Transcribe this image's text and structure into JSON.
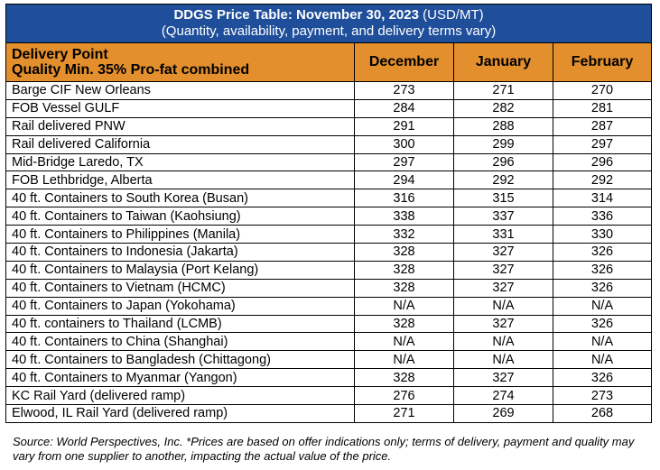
{
  "title": {
    "main": "DDGS Price Table: November 30, 2023",
    "unit": " (USD/MT)",
    "subtitle": "(Quantity, availability, payment, and delivery terms vary)"
  },
  "header": {
    "delivery_point": "Delivery Point",
    "quality": "Quality Min. 35% Pro-fat combined",
    "months": [
      "December",
      "January",
      "February"
    ]
  },
  "rows": [
    {
      "location": "Barge CIF New Orleans",
      "values": [
        "273",
        "271",
        "270"
      ]
    },
    {
      "location": "FOB Vessel GULF",
      "values": [
        "284",
        "282",
        "281"
      ]
    },
    {
      "location": "Rail delivered PNW",
      "values": [
        "291",
        "288",
        "287"
      ]
    },
    {
      "location": "Rail delivered California",
      "values": [
        "300",
        "299",
        "297"
      ]
    },
    {
      "location": "Mid-Bridge Laredo, TX",
      "values": [
        "297",
        "296",
        "296"
      ]
    },
    {
      "location": "FOB Lethbridge, Alberta",
      "values": [
        "294",
        "292",
        "292"
      ]
    },
    {
      "location": "40 ft. Containers to South Korea (Busan)",
      "values": [
        "316",
        "315",
        "314"
      ]
    },
    {
      "location": "40 ft. Containers to Taiwan (Kaohsiung)",
      "values": [
        "338",
        "337",
        "336"
      ]
    },
    {
      "location": "40 ft. Containers to Philippines (Manila)",
      "values": [
        "332",
        "331",
        "330"
      ]
    },
    {
      "location": "40 ft. Containers to Indonesia (Jakarta)",
      "values": [
        "328",
        "327",
        "326"
      ]
    },
    {
      "location": "40 ft. Containers to Malaysia (Port Kelang)",
      "values": [
        "328",
        "327",
        "326"
      ]
    },
    {
      "location": "40 ft. Containers to Vietnam (HCMC)",
      "values": [
        "328",
        "327",
        "326"
      ]
    },
    {
      "location": "40 ft. Containers to Japan (Yokohama)",
      "values": [
        "N/A",
        "N/A",
        "N/A"
      ]
    },
    {
      "location": "40 ft. containers to Thailand (LCMB)",
      "values": [
        "328",
        "327",
        "326"
      ]
    },
    {
      "location": "40 ft. Containers to China (Shanghai)",
      "values": [
        "N/A",
        "N/A",
        "N/A"
      ]
    },
    {
      "location": "40 ft. Containers to Bangladesh (Chittagong)",
      "values": [
        "N/A",
        "N/A",
        "N/A"
      ]
    },
    {
      "location": "40 ft. Containers to Myanmar (Yangon)",
      "values": [
        "328",
        "327",
        "326"
      ]
    },
    {
      "location": "KC Rail Yard (delivered ramp)",
      "values": [
        "276",
        "274",
        "273"
      ]
    },
    {
      "location": "Elwood, IL Rail Yard (delivered ramp)",
      "values": [
        "271",
        "269",
        "268"
      ]
    }
  ],
  "source_note": "Source: World Perspectives, Inc. *Prices are based on offer indications only; terms of delivery, payment and quality may vary from one supplier to another, impacting the actual value of the price.",
  "colors": {
    "title_bg": "#1f4e9a",
    "header_bg": "#e38f2d"
  }
}
